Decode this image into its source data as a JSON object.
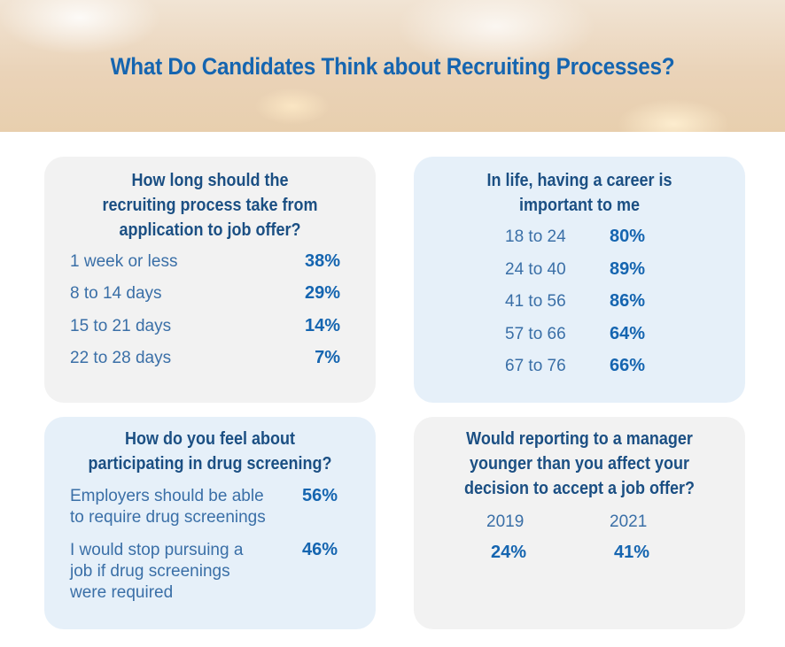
{
  "title": "What Do Candidates Think about Recruiting Processes?",
  "chart_data": [
    {
      "type": "table",
      "title": "How long should the recruiting process take from application to job offer?",
      "title_lines": [
        "How long should the",
        "recruiting process take from",
        "application to job offer?"
      ],
      "rows": [
        {
          "label": "1 week or less",
          "value": 38,
          "display": "38%"
        },
        {
          "label": "8 to 14 days",
          "value": 29,
          "display": "29%"
        },
        {
          "label": "15 to 21 days",
          "value": 14,
          "display": "14%"
        },
        {
          "label": "22 to 28 days",
          "value": 7,
          "display": "7%"
        }
      ]
    },
    {
      "type": "table",
      "title": "In life, having a career is important to me",
      "title_lines": [
        "In life, having a career is",
        "important to me"
      ],
      "rows": [
        {
          "label": "18 to 24",
          "value": 80,
          "display": "80%"
        },
        {
          "label": "24 to 40",
          "value": 89,
          "display": "89%"
        },
        {
          "label": "41 to 56",
          "value": 86,
          "display": "86%"
        },
        {
          "label": "57 to 66",
          "value": 64,
          "display": "64%"
        },
        {
          "label": "67 to 76",
          "value": 66,
          "display": "66%"
        }
      ]
    },
    {
      "type": "table",
      "title": "How do you feel about participating in drug screening?",
      "title_lines": [
        "How do you feel about",
        "participating in drug screening?"
      ],
      "rows": [
        {
          "label_lines": [
            "Employers should be able",
            "to require drug screenings"
          ],
          "value": 56,
          "display": "56%"
        },
        {
          "label_lines": [
            "I would stop pursuing a",
            "job if drug screenings",
            "were required"
          ],
          "value": 46,
          "display": "46%"
        }
      ]
    },
    {
      "type": "table",
      "title": "Would reporting to a manager younger than you affect your decision to accept a job offer?",
      "title_lines": [
        "Would reporting to a manager",
        "younger than you affect your",
        "decision to accept a job offer?"
      ],
      "columns": [
        {
          "label": "2019",
          "value": 24,
          "display": "24%"
        },
        {
          "label": "2021",
          "value": 41,
          "display": "41%"
        }
      ]
    }
  ]
}
